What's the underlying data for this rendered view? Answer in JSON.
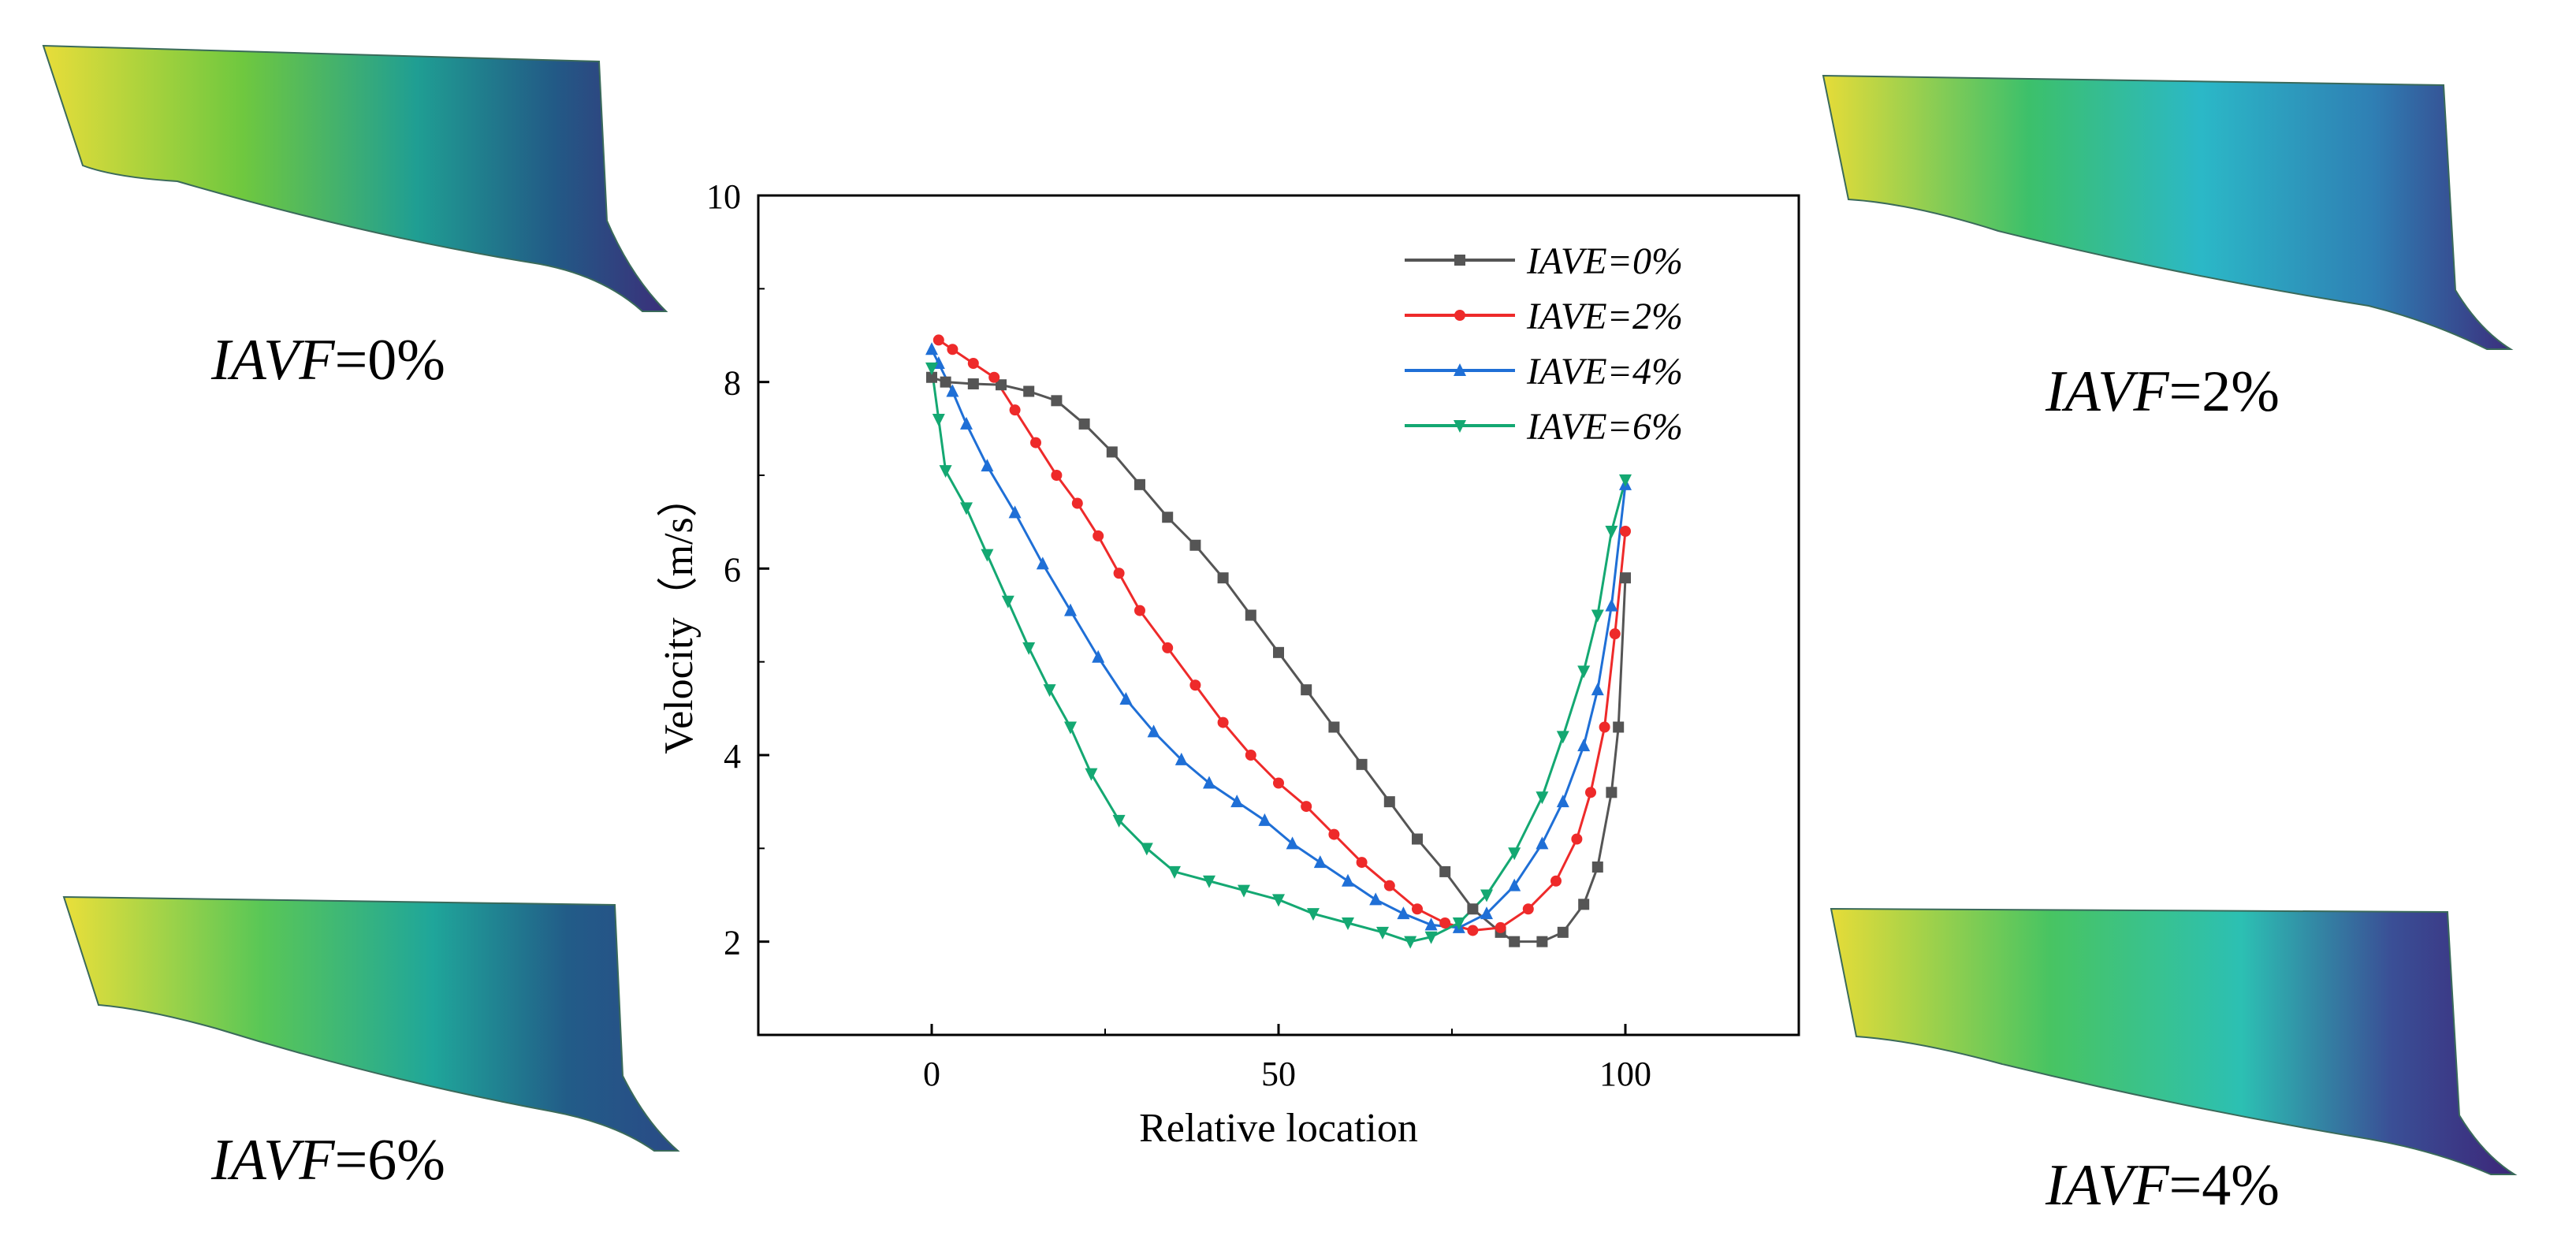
{
  "chart_data": {
    "type": "line",
    "title": "",
    "xlabel": "Relative location",
    "ylabel": "Velocity（m/s）",
    "xlim": [
      -25,
      125
    ],
    "ylim": [
      1,
      10
    ],
    "xticks": [
      0,
      50,
      100
    ],
    "yticks": [
      2,
      4,
      6,
      8,
      10
    ],
    "grid": false,
    "legend_position": "top-right",
    "series": [
      {
        "name": "IAVE=0%",
        "color": "#555555",
        "marker": "square",
        "points": [
          [
            0,
            8.05
          ],
          [
            2,
            8.0
          ],
          [
            6,
            7.98
          ],
          [
            10,
            7.97
          ],
          [
            14,
            7.9
          ],
          [
            18,
            7.8
          ],
          [
            22,
            7.55
          ],
          [
            26,
            7.25
          ],
          [
            30,
            6.9
          ],
          [
            34,
            6.55
          ],
          [
            38,
            6.25
          ],
          [
            42,
            5.9
          ],
          [
            46,
            5.5
          ],
          [
            50,
            5.1
          ],
          [
            54,
            4.7
          ],
          [
            58,
            4.3
          ],
          [
            62,
            3.9
          ],
          [
            66,
            3.5
          ],
          [
            70,
            3.1
          ],
          [
            74,
            2.75
          ],
          [
            78,
            2.35
          ],
          [
            82,
            2.1
          ],
          [
            84,
            2.0
          ],
          [
            88,
            2.0
          ],
          [
            91,
            2.1
          ],
          [
            94,
            2.4
          ],
          [
            96,
            2.8
          ],
          [
            98,
            3.6
          ],
          [
            99,
            4.3
          ],
          [
            100,
            5.9
          ]
        ]
      },
      {
        "name": "IAVE=2%",
        "color": "#ee2a2a",
        "marker": "circle",
        "points": [
          [
            1,
            8.45
          ],
          [
            3,
            8.35
          ],
          [
            6,
            8.2
          ],
          [
            9,
            8.05
          ],
          [
            12,
            7.7
          ],
          [
            15,
            7.35
          ],
          [
            18,
            7.0
          ],
          [
            21,
            6.7
          ],
          [
            24,
            6.35
          ],
          [
            27,
            5.95
          ],
          [
            30,
            5.55
          ],
          [
            34,
            5.15
          ],
          [
            38,
            4.75
          ],
          [
            42,
            4.35
          ],
          [
            46,
            4.0
          ],
          [
            50,
            3.7
          ],
          [
            54,
            3.45
          ],
          [
            58,
            3.15
          ],
          [
            62,
            2.85
          ],
          [
            66,
            2.6
          ],
          [
            70,
            2.35
          ],
          [
            74,
            2.2
          ],
          [
            78,
            2.12
          ],
          [
            82,
            2.15
          ],
          [
            86,
            2.35
          ],
          [
            90,
            2.65
          ],
          [
            93,
            3.1
          ],
          [
            95,
            3.6
          ],
          [
            97,
            4.3
          ],
          [
            98.5,
            5.3
          ],
          [
            100,
            6.4
          ]
        ]
      },
      {
        "name": "IAVE=4%",
        "color": "#1f6fd6",
        "marker": "triangle-up",
        "points": [
          [
            0,
            8.35
          ],
          [
            1,
            8.2
          ],
          [
            3,
            7.9
          ],
          [
            5,
            7.55
          ],
          [
            8,
            7.1
          ],
          [
            12,
            6.6
          ],
          [
            16,
            6.05
          ],
          [
            20,
            5.55
          ],
          [
            24,
            5.05
          ],
          [
            28,
            4.6
          ],
          [
            32,
            4.25
          ],
          [
            36,
            3.95
          ],
          [
            40,
            3.7
          ],
          [
            44,
            3.5
          ],
          [
            48,
            3.3
          ],
          [
            52,
            3.05
          ],
          [
            56,
            2.85
          ],
          [
            60,
            2.65
          ],
          [
            64,
            2.45
          ],
          [
            68,
            2.3
          ],
          [
            72,
            2.18
          ],
          [
            76,
            2.15
          ],
          [
            80,
            2.3
          ],
          [
            84,
            2.6
          ],
          [
            88,
            3.05
          ],
          [
            91,
            3.5
          ],
          [
            94,
            4.1
          ],
          [
            96,
            4.7
          ],
          [
            98,
            5.6
          ],
          [
            100,
            6.9
          ]
        ]
      },
      {
        "name": "IAVE=6%",
        "color": "#14a872",
        "marker": "triangle-down",
        "points": [
          [
            0,
            8.15
          ],
          [
            1,
            7.6
          ],
          [
            2,
            7.05
          ],
          [
            5,
            6.65
          ],
          [
            8,
            6.15
          ],
          [
            11,
            5.65
          ],
          [
            14,
            5.15
          ],
          [
            17,
            4.7
          ],
          [
            20,
            4.3
          ],
          [
            23,
            3.8
          ],
          [
            27,
            3.3
          ],
          [
            31,
            3.0
          ],
          [
            35,
            2.75
          ],
          [
            40,
            2.65
          ],
          [
            45,
            2.55
          ],
          [
            50,
            2.45
          ],
          [
            55,
            2.3
          ],
          [
            60,
            2.2
          ],
          [
            65,
            2.1
          ],
          [
            69,
            2.0
          ],
          [
            72,
            2.05
          ],
          [
            76,
            2.2
          ],
          [
            80,
            2.5
          ],
          [
            84,
            2.95
          ],
          [
            88,
            3.55
          ],
          [
            91,
            4.2
          ],
          [
            94,
            4.9
          ],
          [
            96,
            5.5
          ],
          [
            98,
            6.4
          ],
          [
            100,
            6.95
          ]
        ]
      }
    ]
  },
  "blades": [
    {
      "label_italic": "IAVF",
      "label_rest": "=0%",
      "c1": "#e8dd3a",
      "c2": "#6fc83f",
      "c3": "#1f9e93",
      "c4": "#225a86",
      "c5": "#3b2f7a"
    },
    {
      "label_italic": "IAVF",
      "label_rest": "=2%",
      "c1": "#e6dc38",
      "c2": "#3cc06b",
      "c3": "#2bb8c7",
      "c4": "#2f7fb4",
      "c5": "#3b2e7c"
    },
    {
      "label_italic": "IAVF",
      "label_rest": "=6%",
      "c1": "#eadf3a",
      "c2": "#5ac756",
      "c3": "#1fa69a",
      "c4": "#225c88",
      "c5": "#2a4a86"
    },
    {
      "label_italic": "IAVF",
      "label_rest": "=4%",
      "c1": "#e6dc38",
      "c2": "#48c462",
      "c3": "#2cc0b3",
      "c4": "#3a4f96",
      "c5": "#3c2678"
    }
  ]
}
